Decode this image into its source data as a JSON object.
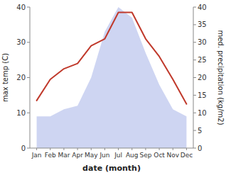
{
  "chart_data": {
    "type": "line",
    "categories": [
      "Jan",
      "Feb",
      "Mar",
      "Apr",
      "May",
      "Jun",
      "Jul",
      "Aug",
      "Sep",
      "Oct",
      "Nov",
      "Dec"
    ],
    "xlabel": "date (month)",
    "ylabel": "max temp (C)",
    "y2label": "med. precipitation (kg/m2)",
    "ylim": [
      0,
      40
    ],
    "yticks": [
      0,
      10,
      20,
      30,
      40
    ],
    "y2lim": [
      0,
      40
    ],
    "y2ticks": [
      0,
      5,
      10,
      15,
      20,
      25,
      30,
      35,
      40
    ],
    "grid": false,
    "series": [
      {
        "type": "area",
        "axis": "y2",
        "color": "#c5cef0",
        "values": [
          9,
          9,
          11,
          12,
          20,
          33,
          40,
          37,
          27,
          18,
          11,
          9
        ]
      },
      {
        "type": "line",
        "color": "#c0392b",
        "values": [
          13.5,
          19.5,
          22.5,
          24.0,
          29.0,
          31.0,
          38.5,
          38.5,
          31.0,
          26.0,
          19.5,
          12.5
        ]
      }
    ]
  }
}
